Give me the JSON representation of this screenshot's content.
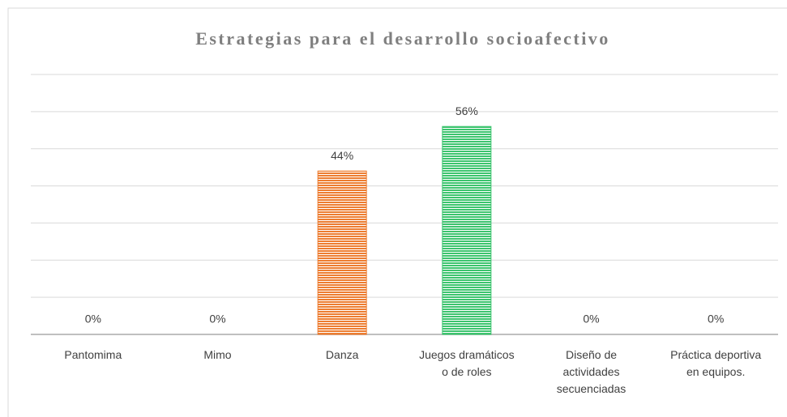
{
  "chart_data": {
    "type": "bar",
    "title": "Estrategias para  el desarrollo socioafectivo",
    "categories": [
      "Pantomima",
      "Mimo",
      "Danza",
      "Juegos dramáticos o de roles",
      "Diseño de actividades secuenciadas",
      "Práctica deportiva en equipos."
    ],
    "values": [
      0,
      0,
      44,
      56,
      0,
      0
    ],
    "value_labels": [
      "0%",
      "0%",
      "44%",
      "56%",
      "0%",
      "0%"
    ],
    "colors": [
      "#ed7d31",
      "#ed7d31",
      "#ed7d31",
      "#3cc46e",
      "#ed7d31",
      "#ed7d31"
    ],
    "ylim": [
      0,
      70
    ],
    "yticks": [
      0,
      10,
      20,
      30,
      40,
      50,
      60,
      70
    ],
    "grid": true
  }
}
